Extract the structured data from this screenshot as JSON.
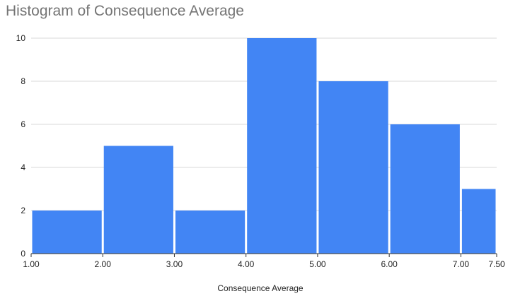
{
  "chart_data": {
    "type": "bar",
    "title": "Histogram of Consequence Average",
    "xlabel": "Consequence Average",
    "ylabel": "",
    "bins": [
      {
        "start": 1.0,
        "end": 2.0,
        "count": 2
      },
      {
        "start": 2.0,
        "end": 3.0,
        "count": 5
      },
      {
        "start": 3.0,
        "end": 4.0,
        "count": 2
      },
      {
        "start": 4.0,
        "end": 5.0,
        "count": 10
      },
      {
        "start": 5.0,
        "end": 6.0,
        "count": 8
      },
      {
        "start": 6.0,
        "end": 7.0,
        "count": 6
      },
      {
        "start": 7.0,
        "end": 7.5,
        "count": 3
      }
    ],
    "x_ticks": [
      "1.00",
      "2.00",
      "3.00",
      "4.00",
      "5.00",
      "6.00",
      "7.00",
      "7.50"
    ],
    "y_ticks": [
      "0",
      "2",
      "4",
      "6",
      "8",
      "10"
    ],
    "xlim": [
      1.0,
      7.5
    ],
    "ylim": [
      0,
      10
    ],
    "grid": true,
    "legend": "none",
    "colors": {
      "bar": "#4285f4",
      "grid": "#d9d9d9",
      "axis": "#333333"
    }
  }
}
